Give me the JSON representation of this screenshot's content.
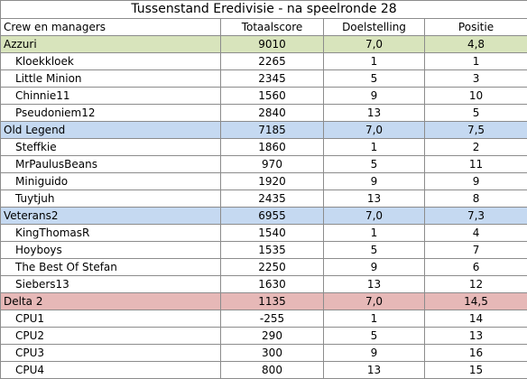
{
  "title": "Tussenstand Eredivisie - na speelronde 28",
  "columns": [
    "Crew en managers",
    "Totaalscore",
    "Doelstelling",
    "Positie"
  ],
  "teams": [
    {
      "name": "Azzuri",
      "score": "9010",
      "goal": "7,0",
      "position": "4,8",
      "color": "#d8e4bc",
      "players": [
        {
          "name": "Kloekkloek",
          "score": "2265",
          "goal": "1",
          "position": "1"
        },
        {
          "name": "Little Minion",
          "score": "2345",
          "goal": "5",
          "position": "3"
        },
        {
          "name": "Chinnie11",
          "score": "1560",
          "goal": "9",
          "position": "10"
        },
        {
          "name": "Pseudoniem12",
          "score": "2840",
          "goal": "13",
          "position": "5"
        }
      ]
    },
    {
      "name": "Old Legend",
      "score": "7185",
      "goal": "7,0",
      "position": "7,5",
      "color": "#c5d9f1",
      "players": [
        {
          "name": "Steffkie",
          "score": "1860",
          "goal": "1",
          "position": "2"
        },
        {
          "name": "MrPaulusBeans",
          "score": "970",
          "goal": "5",
          "position": "11"
        },
        {
          "name": "Miniguido",
          "score": "1920",
          "goal": "9",
          "position": "9"
        },
        {
          "name": "Tuytjuh",
          "score": "2435",
          "goal": "13",
          "position": "8"
        }
      ]
    },
    {
      "name": "Veterans2",
      "score": "6955",
      "goal": "7,0",
      "position": "7,3",
      "color": "#c5d9f1",
      "players": [
        {
          "name": "KingThomasR",
          "score": "1540",
          "goal": "1",
          "position": "4"
        },
        {
          "name": "Hoyboys",
          "score": "1535",
          "goal": "5",
          "position": "7"
        },
        {
          "name": "The Best Of Stefan",
          "score": "2250",
          "goal": "9",
          "position": "6"
        },
        {
          "name": "Siebers13",
          "score": "1630",
          "goal": "13",
          "position": "12"
        }
      ]
    },
    {
      "name": "Delta 2",
      "score": "1135",
      "goal": "7,0",
      "position": "14,5",
      "color": "#e6b8b7",
      "players": [
        {
          "name": "CPU1",
          "score": "-255",
          "goal": "1",
          "position": "14"
        },
        {
          "name": "CPU2",
          "score": "290",
          "goal": "5",
          "position": "13"
        },
        {
          "name": "CPU3",
          "score": "300",
          "goal": "9",
          "position": "16"
        },
        {
          "name": "CPU4",
          "score": "800",
          "goal": "13",
          "position": "15"
        }
      ]
    }
  ]
}
